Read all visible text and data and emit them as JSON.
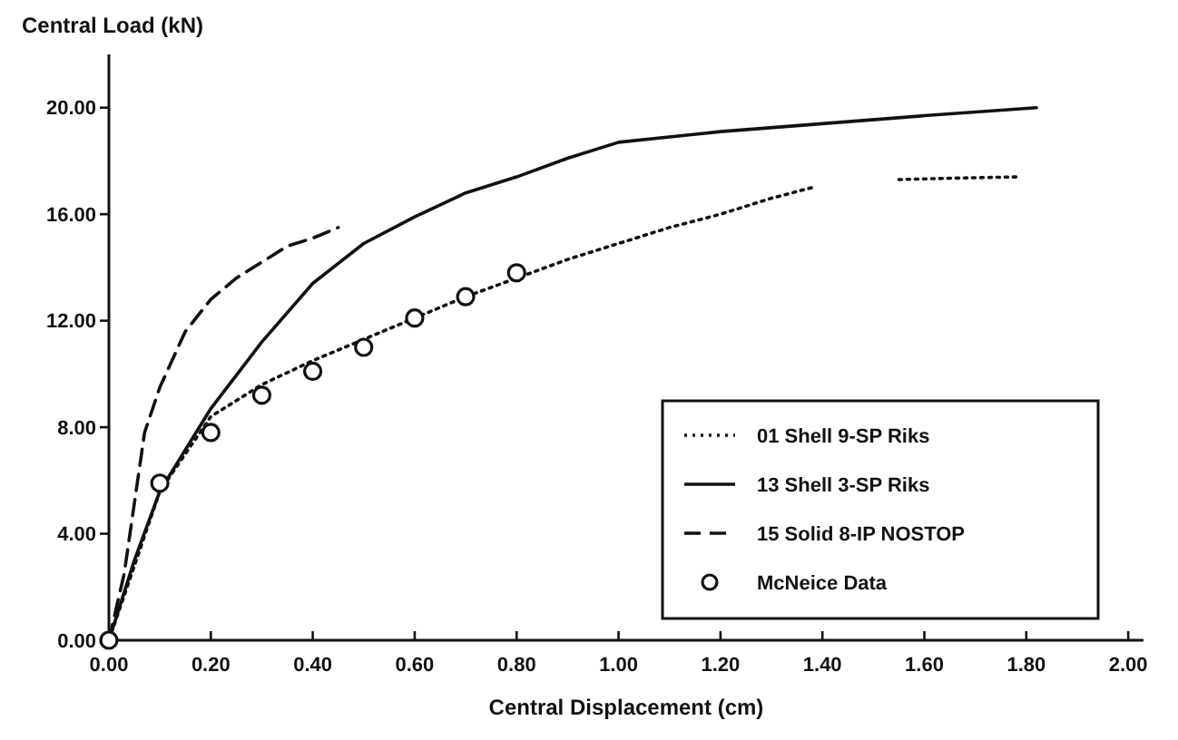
{
  "chart_data": {
    "type": "line",
    "xlabel": "Central Displacement (cm)",
    "ylabel": "Central Load (kN)",
    "xlim": [
      0,
      2.03
    ],
    "ylim": [
      0,
      22
    ],
    "xticks": [
      {
        "value": 0,
        "label": "0.00"
      },
      {
        "value": 0.2,
        "label": "0.20"
      },
      {
        "value": 0.4,
        "label": "0.40"
      },
      {
        "value": 0.6,
        "label": "0.60"
      },
      {
        "value": 0.8,
        "label": "0.80"
      },
      {
        "value": 1.0,
        "label": "1.00"
      },
      {
        "value": 1.2,
        "label": "1.20"
      },
      {
        "value": 1.4,
        "label": "1.40"
      },
      {
        "value": 1.6,
        "label": "1.60"
      },
      {
        "value": 1.8,
        "label": "1.80"
      },
      {
        "value": 2.0,
        "label": "2.00"
      }
    ],
    "yticks": [
      {
        "value": 0,
        "label": "0.00"
      },
      {
        "value": 4,
        "label": "4.00"
      },
      {
        "value": 8,
        "label": "8.00"
      },
      {
        "value": 12,
        "label": "12.00"
      },
      {
        "value": 16,
        "label": "16.00"
      },
      {
        "value": 20,
        "label": "20.00"
      }
    ],
    "grid": false,
    "legend": "bottom right",
    "series": [
      {
        "name": "01 Shell 9-SP Riks",
        "color": "#111111",
        "line_style": "dotted",
        "marker": "none",
        "x": [
          0,
          0.1,
          0.2,
          0.3,
          0.4,
          0.5,
          0.6,
          0.7,
          0.8,
          0.9,
          1.0,
          1.1,
          1.2,
          1.3,
          1.38,
          1.46,
          1.55,
          1.65,
          1.78
        ],
        "values": [
          0,
          5.6,
          8.4,
          9.6,
          10.5,
          11.3,
          12.1,
          12.9,
          13.6,
          14.3,
          14.9,
          15.5,
          16.0,
          16.6,
          17.0,
          null,
          17.3,
          17.35,
          17.4
        ]
      },
      {
        "name": "13 Shell 3-SP Riks",
        "color": "#111111",
        "line_style": "solid",
        "marker": "none",
        "x": [
          0,
          0.05,
          0.1,
          0.2,
          0.3,
          0.4,
          0.44,
          0.5,
          0.6,
          0.7,
          0.8,
          0.9,
          1.0,
          1.2,
          1.4,
          1.6,
          1.82
        ],
        "values": [
          0,
          3.0,
          5.6,
          8.7,
          11.2,
          13.4,
          14.0,
          14.9,
          15.9,
          16.8,
          17.4,
          18.1,
          18.7,
          19.1,
          19.4,
          19.7,
          20.0
        ]
      },
      {
        "name": "15 Solid 8-IP NOSTOP",
        "color": "#111111",
        "line_style": "dashed",
        "marker": "none",
        "x": [
          0,
          0.03,
          0.07,
          0.1,
          0.15,
          0.2,
          0.25,
          0.3,
          0.35,
          0.4,
          0.45
        ],
        "values": [
          0,
          2.5,
          7.8,
          9.5,
          11.6,
          12.8,
          13.6,
          14.2,
          14.8,
          15.1,
          15.5
        ]
      },
      {
        "name": "McNeice Data",
        "type": "scatter",
        "color": "#111111",
        "marker": "circle",
        "x": [
          0,
          0.1,
          0.2,
          0.3,
          0.4,
          0.5,
          0.6,
          0.7,
          0.8
        ],
        "values": [
          0,
          5.9,
          7.8,
          9.2,
          10.1,
          11.0,
          12.1,
          12.9,
          13.8
        ]
      }
    ]
  }
}
